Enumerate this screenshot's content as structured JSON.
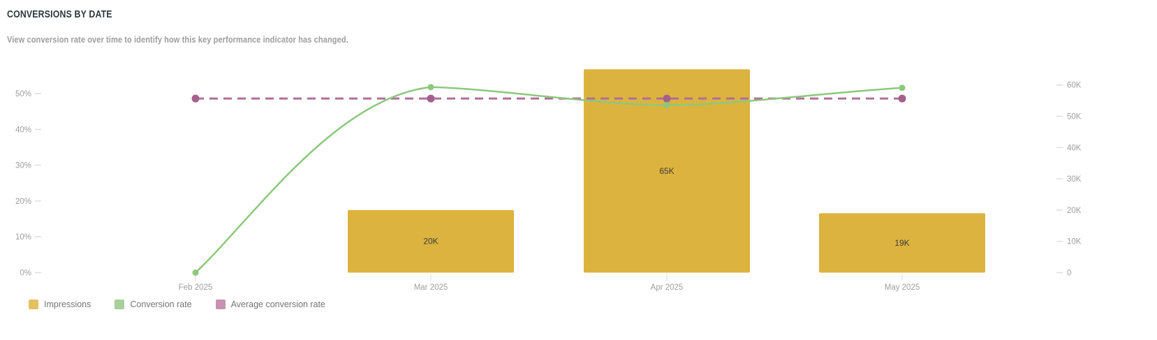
{
  "header": {
    "title": "CONVERSIONS BY DATE",
    "subtitle": "View conversion rate over time to identify how this key performance indicator has changed."
  },
  "chart_data": {
    "type": "combo-bar-line",
    "categories": [
      "Feb 2025",
      "Mar 2025",
      "Apr 2025",
      "May 2025"
    ],
    "series": [
      {
        "name": "Impressions",
        "type": "bar",
        "axis": "right",
        "values": [
          0,
          20000,
          65000,
          19000
        ],
        "value_labels": [
          "",
          "20K",
          "65K",
          "19K"
        ],
        "color": "#dcb33f"
      },
      {
        "name": "Conversion rate",
        "type": "line",
        "axis": "left",
        "values_pct": [
          0,
          51.8,
          46.8,
          51.6
        ],
        "color": "#8cc87c"
      },
      {
        "name": "Average conversion rate",
        "type": "dashed_line",
        "axis": "left",
        "values_pct": [
          48.6,
          48.6,
          48.6,
          48.6
        ],
        "color": "#b06e99",
        "dot_color": "#a4608c"
      }
    ],
    "left_axis": {
      "unit": "%",
      "range": [
        0,
        58
      ],
      "ticks": [
        {
          "label": "0%",
          "value": 0
        },
        {
          "label": "10%",
          "value": 10
        },
        {
          "label": "20%",
          "value": 20
        },
        {
          "label": "30%",
          "value": 30
        },
        {
          "label": "40%",
          "value": 40
        },
        {
          "label": "50%",
          "value": 50
        }
      ]
    },
    "right_axis": {
      "unit": "impressions",
      "range": [
        0,
        68000
      ],
      "ticks": [
        {
          "label": "0",
          "value": 0
        },
        {
          "label": "10K",
          "value": 10000
        },
        {
          "label": "20K",
          "value": 20000
        },
        {
          "label": "30K",
          "value": 30000
        },
        {
          "label": "40K",
          "value": 40000
        },
        {
          "label": "50K",
          "value": 50000
        },
        {
          "label": "60K",
          "value": 60000
        }
      ]
    },
    "grid": "none",
    "legend_position": "bottom-left"
  },
  "legend": {
    "items": [
      {
        "label": "Impressions",
        "color": "#e2c161"
      },
      {
        "label": "Conversion rate",
        "color": "#a9cf9b"
      },
      {
        "label": "Average conversion rate",
        "color": "#c791b3"
      }
    ]
  }
}
